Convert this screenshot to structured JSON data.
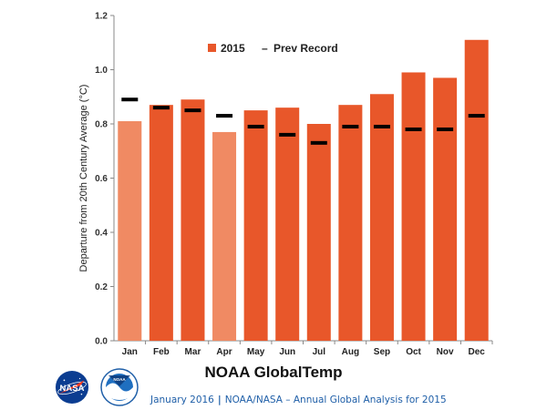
{
  "chart_data": {
    "type": "bar",
    "title": "NOAA GlobalTemp",
    "ylabel": "Departure from 20th Century Average (°C)",
    "xlabel": "",
    "ylim": [
      0,
      1.2
    ],
    "yticks": [
      "0.0",
      "0.2",
      "0.4",
      "0.6",
      "0.8",
      "1.0",
      "1.2"
    ],
    "categories": [
      "Jan",
      "Feb",
      "Mar",
      "Apr",
      "May",
      "Jun",
      "Jul",
      "Aug",
      "Sep",
      "Oct",
      "Nov",
      "Dec"
    ],
    "legend_position": "top",
    "series": [
      {
        "name": "2015",
        "type": "bar",
        "color": "#e8572a",
        "light_color": "#f08a63",
        "light_months": [
          "Jan",
          "Apr"
        ],
        "values": [
          0.81,
          0.87,
          0.89,
          0.77,
          0.85,
          0.86,
          0.8,
          0.87,
          0.91,
          0.99,
          0.97,
          1.11
        ]
      },
      {
        "name": "Prev Record",
        "type": "marker",
        "color": "#000000",
        "values": [
          0.89,
          0.86,
          0.85,
          0.83,
          0.79,
          0.76,
          0.73,
          0.79,
          0.79,
          0.78,
          0.78,
          0.83
        ]
      }
    ],
    "legend": {
      "bar_label": "2015",
      "marker_label": "Prev Record",
      "marker_glyph": "–"
    },
    "grid": false
  },
  "logos": {
    "nasa": "NASA",
    "noaa": "NOAA"
  },
  "footer": {
    "date": "January 2016",
    "separator": "|",
    "text": "NOAA/NASA – Annual Global Analysis for 2015"
  }
}
